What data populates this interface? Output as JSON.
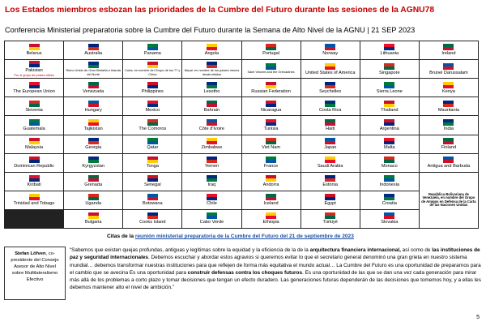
{
  "header": {
    "title": "Los Estados miembros esbozan las prioridades de la Cumbre del Futuro durante las sesiones de la AGNU78",
    "subtitle": "Conferencia Ministerial preparatoria sobre la Cumbre del Futuro durante la Semana de Alto Nivel de la AGNU | 21 SEP 2023"
  },
  "grid": {
    "rows": [
      [
        "Belarus",
        "Australia",
        "Panama",
        "Angola",
        "Portugal",
        "Norway",
        "Lithuania",
        "Ireland"
      ],
      [
        {
          "name": "Pakistan",
          "note": "Por el grupo de países afines"
        },
        "Reino Unido de Gran Bretaña e Irlanda del Norte",
        "Cuba, en nombre del Grupo de los 77 y China",
        "Nepal, en nombre de los países menos desarrollados",
        "Saint Vincent and the Grenadines",
        "United States of America",
        "Singapore",
        "Brunei Darussalam"
      ],
      [
        "The European Union",
        "Venezuela",
        "Philippines",
        "Lesotho",
        "Russian Federation",
        "Seychelles",
        "Sierra Leone",
        "Kenya"
      ],
      [
        "Slovenia",
        "Hungary",
        "Mexico",
        "Bahrain",
        "Nicaragua",
        "Costa Rica",
        "Thailand",
        "Mauritania"
      ],
      [
        "Guatemala",
        "Tajikistan",
        "The Comoros",
        "Côte d'Ivoire",
        "Tunisia",
        "Haiti",
        "Argentina",
        "India"
      ],
      [
        "Malaysia",
        "Georgia",
        "Qatar",
        "Zimbabwe",
        "Viet Nam",
        "Japan",
        "Malta",
        "Finland"
      ],
      [
        "Dominican Republic",
        "Kyrgyzstan",
        "Tonga",
        "Yemen",
        "France",
        "Saudi Arabia",
        "Monaco",
        "Antigua and Barbuda"
      ],
      [
        "Kiribati",
        "Grenada",
        "Senegal",
        "Iraq",
        "Andorra",
        "Estonia",
        "Indonesia",
        "República Bolivariana de Venezuela, en nombre del Grupo de Amigos en Defensa de la Carta de las Naciones Unidas"
      ],
      [
        "Trinidad and Tobago",
        "Uganda",
        "Botswana",
        "Chile",
        "Iceland",
        "Egypt",
        "Croatia"
      ],
      [
        "Bulgaria",
        "Cooks Island",
        "Cabo Verde",
        "Ethiopia",
        "Türkiyé",
        "Slovakia"
      ]
    ]
  },
  "citation": {
    "prefix": "Citas de la",
    "link": "reunión ministerial preparatoria de la Cumbre del Futuro del 21 de septiembre de 2023"
  },
  "speaker": {
    "name": "Stefan Löfven",
    "role": ", co-presidente del Consejo Asesor de Alto Nivel sobre Multilateralismo Efectivo"
  },
  "quote": [
    {
      "text": "“Sabemos que existen quejas profundas, antiguas y legítimas sobre la equidad y la eficiencia de la de la ",
      "bold": false
    },
    {
      "text": "arquitectura financiera internacional,",
      "bold": true
    },
    {
      "text": " así como de ",
      "bold": false
    },
    {
      "text": "las instituciones de paz y seguridad internacionales",
      "bold": true
    },
    {
      "text": ". Debemos escuchar y abordar estos agravios si queremos evitar lo que el secretario general denominó una gran grieta en nuestro sistema mundial… debemos transformar nuestras instituciones para que reflejen de forma más equitativa el mundo actual… La Cumbre del Futuro es una oportunidad de prepararnos para el cambio que se avecina Es una oportunidad para ",
      "bold": false
    },
    {
      "text": "construir defensas contra los choques futuros",
      "bold": true
    },
    {
      "text": ". Es una oportunidad de las que se dan una vez cada generación para mirar más allá de los problemas a corto plazo y tomar decisiones que tengan un efecto duradero. Las generaciones futuras dependerán de las decisiones que tomemos hoy, y a ellas les debemos mantener alto el nivel de ambición.”",
      "bold": false
    }
  ],
  "page_number": "5"
}
